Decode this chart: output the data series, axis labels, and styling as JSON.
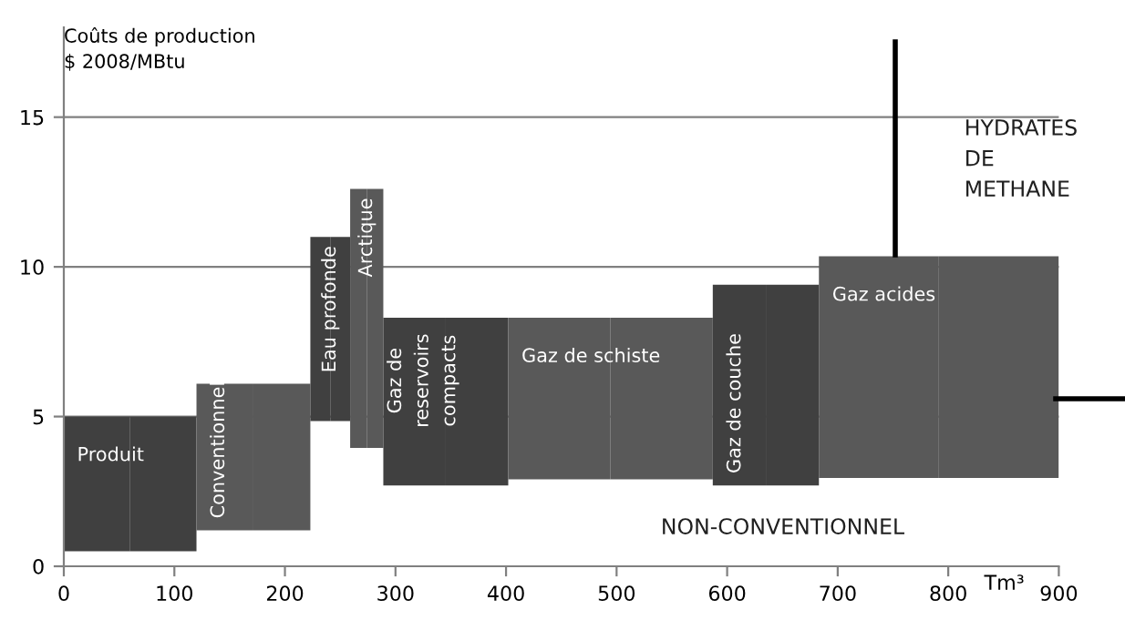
{
  "chart_data": {
    "type": "bar",
    "xlabel": "Tm³",
    "ylabel": "Coûts de production\n$ 2008/MBtu",
    "xlim": [
      0,
      900
    ],
    "ylim": [
      0,
      18
    ],
    "xticks": [
      0,
      100,
      200,
      300,
      400,
      500,
      600,
      700,
      800,
      900
    ],
    "yticks": [
      0,
      5,
      10,
      15
    ],
    "grid": "y",
    "annotations": [
      "NON-CONVENTIONNEL",
      "HYDRATES\nDE\nMETHANE"
    ],
    "series": [
      {
        "name": "Produit",
        "color": "#404040",
        "x": [
          0,
          120
        ],
        "base": [
          0.5,
          0.5
        ],
        "values": [
          4.5,
          4.5
        ]
      },
      {
        "name": "Conventionnel",
        "color": "#595959",
        "x": [
          120,
          223
        ],
        "base": [
          1.2,
          1.2
        ],
        "values": [
          4.9,
          4.9
        ]
      },
      {
        "name": "Eau profonde",
        "color": "#404040",
        "x": [
          223,
          259
        ],
        "base": [
          4.85,
          4.85
        ],
        "values": [
          6.15,
          6.15
        ]
      },
      {
        "name": "Arctique",
        "color": "#595959",
        "x": [
          259,
          289
        ],
        "base": [
          3.95,
          3.95
        ],
        "values": [
          8.65,
          8.65
        ]
      },
      {
        "name": "Gaz de\nreservoirs\ncompacts",
        "color": "#404040",
        "x": [
          289,
          402
        ],
        "base": [
          2.7,
          2.7
        ],
        "values": [
          5.6,
          5.6
        ]
      },
      {
        "name": "Gaz de schiste",
        "color": "#595959",
        "x": [
          402,
          587
        ],
        "base": [
          2.9,
          2.9
        ],
        "values": [
          5.4,
          5.4
        ]
      },
      {
        "name": "Gaz de couche",
        "color": "#404040",
        "x": [
          587,
          683
        ],
        "base": [
          2.7,
          2.7
        ],
        "values": [
          6.7,
          6.7
        ]
      },
      {
        "name": "Gaz acides",
        "color": "#595959",
        "x": [
          683,
          900
        ],
        "base": [
          2.95,
          2.95
        ],
        "values": [
          7.4,
          7.4
        ]
      }
    ]
  }
}
